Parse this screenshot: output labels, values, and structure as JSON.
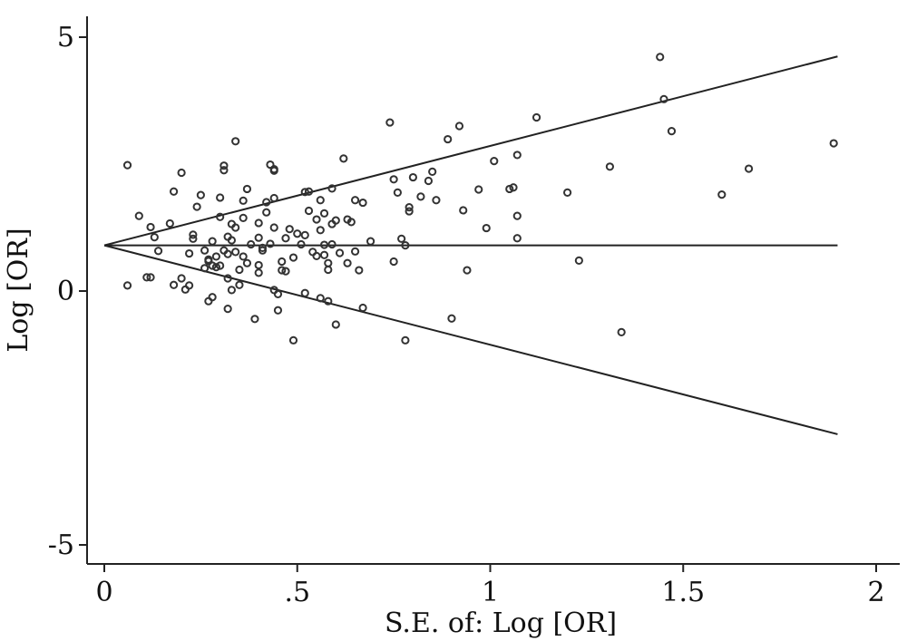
{
  "chart_data": {
    "type": "scatter",
    "title": "",
    "xlabel": "S.E. of: Log [OR]",
    "ylabel": "Log [OR]",
    "xlim": [
      0,
      2
    ],
    "ylim": [
      -5,
      5
    ],
    "x_ticks": [
      {
        "value": 0,
        "label": "0"
      },
      {
        "value": 0.5,
        "label": ".5"
      },
      {
        "value": 1,
        "label": "1"
      },
      {
        "value": 1.5,
        "label": "1.5"
      },
      {
        "value": 2,
        "label": "2"
      }
    ],
    "y_ticks": [
      {
        "value": 5,
        "label": "5"
      },
      {
        "value": 0,
        "label": "0"
      },
      {
        "value": -5,
        "label": "-5"
      }
    ],
    "reference_lines": [
      {
        "kind": "pooled-estimate",
        "x": [
          0,
          1.9
        ],
        "y": [
          0.9,
          0.9
        ]
      },
      {
        "kind": "upper-confidence-limit",
        "x": [
          0,
          1.9
        ],
        "y": [
          0.9,
          4.62
        ]
      },
      {
        "kind": "lower-confidence-limit",
        "x": [
          0,
          1.9
        ],
        "y": [
          0.9,
          -2.82
        ]
      }
    ],
    "points": [
      [
        0.06,
        2.48
      ],
      [
        0.06,
        0.11
      ],
      [
        0.09,
        1.48
      ],
      [
        0.11,
        0.27
      ],
      [
        0.12,
        0.27
      ],
      [
        0.12,
        1.26
      ],
      [
        0.13,
        1.06
      ],
      [
        0.14,
        0.79
      ],
      [
        0.17,
        1.33
      ],
      [
        0.18,
        1.96
      ],
      [
        0.18,
        0.12
      ],
      [
        0.2,
        0.25
      ],
      [
        0.2,
        2.33
      ],
      [
        0.21,
        0.03
      ],
      [
        0.22,
        0.11
      ],
      [
        0.22,
        0.74
      ],
      [
        0.23,
        1.11
      ],
      [
        0.23,
        1.03
      ],
      [
        0.24,
        1.66
      ],
      [
        0.25,
        1.89
      ],
      [
        0.26,
        0.45
      ],
      [
        0.26,
        0.8
      ],
      [
        0.27,
        0.62
      ],
      [
        0.27,
        0.59
      ],
      [
        0.27,
        -0.2
      ],
      [
        0.28,
        0.5
      ],
      [
        0.28,
        -0.12
      ],
      [
        0.28,
        0.98
      ],
      [
        0.29,
        0.47
      ],
      [
        0.29,
        0.68
      ],
      [
        0.3,
        1.84
      ],
      [
        0.3,
        1.46
      ],
      [
        0.3,
        0.5
      ],
      [
        0.31,
        2.47
      ],
      [
        0.31,
        2.38
      ],
      [
        0.31,
        0.8
      ],
      [
        0.32,
        0.25
      ],
      [
        0.32,
        -0.35
      ],
      [
        0.32,
        0.73
      ],
      [
        0.33,
        0.02
      ],
      [
        0.33,
        1.0
      ],
      [
        0.33,
        1.32
      ],
      [
        0.34,
        2.95
      ],
      [
        0.34,
        1.25
      ],
      [
        0.34,
        0.77
      ],
      [
        0.35,
        0.42
      ],
      [
        0.35,
        0.12
      ],
      [
        0.36,
        1.78
      ],
      [
        0.36,
        1.44
      ],
      [
        0.36,
        0.68
      ],
      [
        0.37,
        2.01
      ],
      [
        0.37,
        0.55
      ],
      [
        0.38,
        0.92
      ],
      [
        0.39,
        -0.55
      ],
      [
        0.4,
        0.36
      ],
      [
        0.4,
        1.34
      ],
      [
        0.4,
        1.05
      ],
      [
        0.41,
        0.85
      ],
      [
        0.41,
        0.8
      ],
      [
        0.42,
        1.75
      ],
      [
        0.42,
        1.55
      ],
      [
        0.43,
        2.49
      ],
      [
        0.43,
        0.93
      ],
      [
        0.44,
        2.4
      ],
      [
        0.44,
        2.37
      ],
      [
        0.44,
        1.83
      ],
      [
        0.44,
        1.25
      ],
      [
        0.44,
        0.02
      ],
      [
        0.45,
        -0.06
      ],
      [
        0.45,
        -0.38
      ],
      [
        0.46,
        0.58
      ],
      [
        0.46,
        0.41
      ],
      [
        0.47,
        1.04
      ],
      [
        0.47,
        0.39
      ],
      [
        0.48,
        1.22
      ],
      [
        0.49,
        -0.97
      ],
      [
        0.49,
        0.66
      ],
      [
        0.5,
        1.13
      ],
      [
        0.51,
        0.92
      ],
      [
        0.52,
        1.1
      ],
      [
        0.52,
        -0.04
      ],
      [
        0.53,
        1.96
      ],
      [
        0.53,
        1.58
      ],
      [
        0.54,
        0.77
      ],
      [
        0.55,
        1.41
      ],
      [
        0.55,
        0.69
      ],
      [
        0.56,
        1.79
      ],
      [
        0.56,
        -0.14
      ],
      [
        0.56,
        1.2
      ],
      [
        0.57,
        1.53
      ],
      [
        0.57,
        0.71
      ],
      [
        0.57,
        0.91
      ],
      [
        0.58,
        -0.2
      ],
      [
        0.58,
        0.55
      ],
      [
        0.58,
        0.42
      ],
      [
        0.59,
        2.02
      ],
      [
        0.59,
        0.92
      ],
      [
        0.59,
        1.32
      ],
      [
        0.6,
        1.39
      ],
      [
        0.6,
        -0.66
      ],
      [
        0.61,
        0.75
      ],
      [
        0.62,
        2.61
      ],
      [
        0.63,
        1.41
      ],
      [
        0.63,
        0.55
      ],
      [
        0.64,
        1.36
      ],
      [
        0.65,
        0.78
      ],
      [
        0.65,
        1.79
      ],
      [
        0.66,
        0.41
      ],
      [
        0.67,
        1.74
      ],
      [
        0.67,
        -0.33
      ],
      [
        0.74,
        3.32
      ],
      [
        0.75,
        0.58
      ],
      [
        0.75,
        2.2
      ],
      [
        0.76,
        1.94
      ],
      [
        0.77,
        1.03
      ],
      [
        0.78,
        -0.97
      ],
      [
        0.78,
        0.9
      ],
      [
        0.79,
        1.57
      ],
      [
        0.79,
        1.65
      ],
      [
        0.8,
        2.24
      ],
      [
        0.82,
        1.86
      ],
      [
        0.84,
        2.17
      ],
      [
        0.85,
        2.35
      ],
      [
        0.86,
        1.79
      ],
      [
        0.89,
        2.99
      ],
      [
        0.9,
        -0.54
      ],
      [
        0.92,
        3.25
      ],
      [
        0.93,
        1.59
      ],
      [
        0.94,
        0.41
      ],
      [
        0.97,
        2.0
      ],
      [
        0.99,
        1.24
      ],
      [
        1.01,
        2.56
      ],
      [
        1.05,
        2.01
      ],
      [
        1.07,
        1.04
      ],
      [
        1.07,
        1.48
      ],
      [
        1.07,
        2.68
      ],
      [
        1.12,
        3.42
      ],
      [
        1.2,
        1.94
      ],
      [
        1.23,
        0.6
      ],
      [
        1.31,
        2.45
      ],
      [
        1.34,
        -0.81
      ],
      [
        1.44,
        4.61
      ],
      [
        1.45,
        3.78
      ],
      [
        1.47,
        3.15
      ],
      [
        1.6,
        1.9
      ],
      [
        1.67,
        2.41
      ],
      [
        1.89,
        2.91
      ],
      [
        1.06,
        2.04
      ],
      [
        0.32,
        1.07
      ],
      [
        0.4,
        0.51
      ],
      [
        0.52,
        1.95
      ],
      [
        0.69,
        0.98
      ]
    ]
  }
}
